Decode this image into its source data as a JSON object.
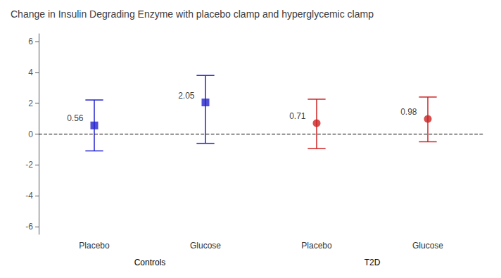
{
  "chart_data": {
    "type": "scatter",
    "title": "Change in Insulin Degrading Enzyme with placebo clamp and hyperglycemic clamp",
    "categories": [
      "Placebo",
      "Glucose",
      "Placebo",
      "Glucose"
    ],
    "series": [
      {
        "name": "Controls",
        "color": "#2222CC",
        "marker": "square",
        "values": [
          0.56,
          2.05,
          null,
          null
        ],
        "err_up": [
          1.65,
          1.75,
          null,
          null
        ],
        "err_down": [
          1.65,
          2.65,
          null,
          null
        ]
      },
      {
        "name": "T2D",
        "color": "#CC2222",
        "marker": "circle",
        "values": [
          null,
          null,
          0.71,
          0.98
        ],
        "err_up": [
          null,
          null,
          1.55,
          1.42
        ],
        "err_down": [
          null,
          null,
          1.65,
          1.48
        ]
      }
    ],
    "ylim": [
      -6.5,
      6.5
    ],
    "yticks": [
      -6,
      -4,
      -2,
      0,
      2,
      4,
      6
    ],
    "hline_y": 0,
    "data_labels": true,
    "grid": false
  }
}
